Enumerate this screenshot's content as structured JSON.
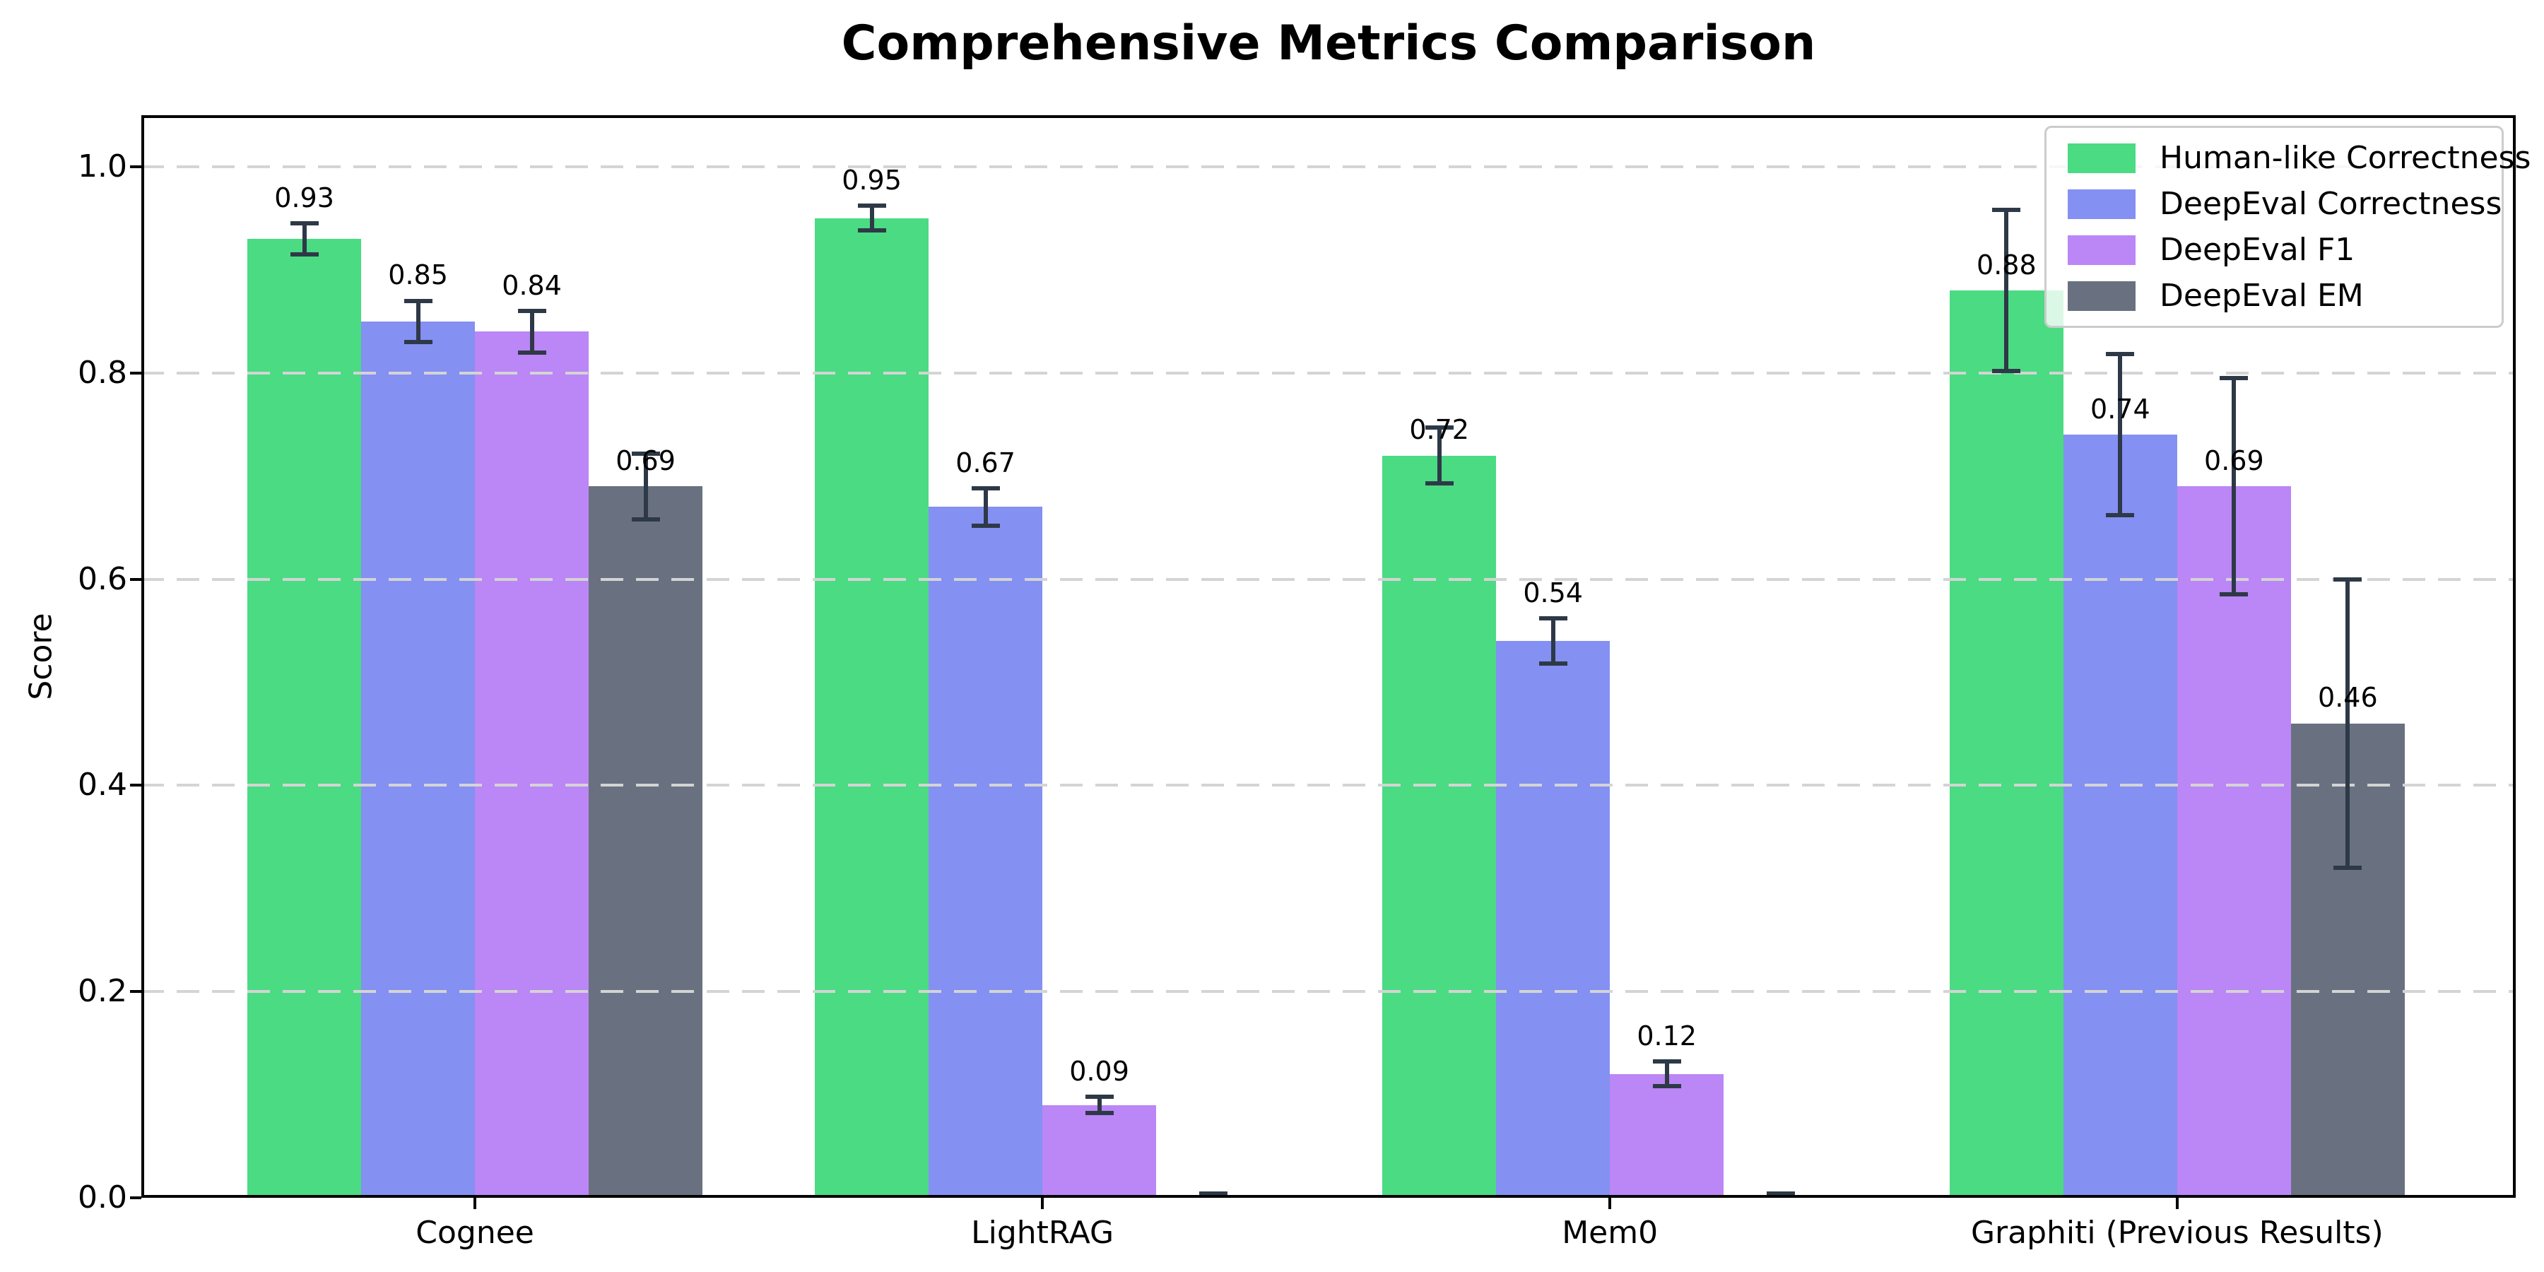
{
  "chart_data": {
    "type": "bar",
    "title": "Comprehensive Metrics Comparison",
    "xlabel": "",
    "ylabel": "Score",
    "categories": [
      "Cognee",
      "LightRAG",
      "Mem0",
      "Graphiti (Previous Results)"
    ],
    "series": [
      {
        "name": "Human-like Correctness",
        "color": "#4bdb83",
        "values": [
          0.93,
          0.95,
          0.72,
          0.88
        ],
        "errors": [
          0.015,
          0.012,
          0.027,
          0.078
        ],
        "labels": [
          "0.93",
          "0.95",
          "0.72",
          "0.88"
        ]
      },
      {
        "name": "DeepEval Correctness",
        "color": "#8490f2",
        "values": [
          0.85,
          0.67,
          0.54,
          0.74
        ],
        "errors": [
          0.02,
          0.018,
          0.022,
          0.078
        ],
        "labels": [
          "0.85",
          "0.67",
          "0.54",
          "0.74"
        ]
      },
      {
        "name": "DeepEval F1",
        "color": "#bb86f5",
        "values": [
          0.84,
          0.09,
          0.12,
          0.69
        ],
        "errors": [
          0.02,
          0.008,
          0.012,
          0.105
        ],
        "labels": [
          "0.84",
          "0.09",
          "0.12",
          "0.69"
        ]
      },
      {
        "name": "DeepEval EM",
        "color": "#697180",
        "values": [
          0.69,
          0.0,
          0.0,
          0.46
        ],
        "errors": [
          0.032,
          0.004,
          0.004,
          0.14
        ],
        "labels": [
          "0.69",
          "",
          "",
          "0.46"
        ]
      }
    ],
    "ytick_labels": [
      "0.0",
      "0.2",
      "0.4",
      "0.6",
      "0.8",
      "1.0"
    ],
    "yticks": [
      0.0,
      0.2,
      0.4,
      0.6,
      0.8,
      1.0
    ],
    "ylim": [
      0,
      1.05
    ],
    "grid": "horizontal-dashed",
    "legend_position": "upper-right"
  },
  "colors": {
    "errorbar": "#2e3947",
    "grid": "#d4d4d4",
    "axis": "#000000",
    "text": "#000000",
    "legend_border": "#cccccc",
    "legend_bg": "rgba(255,255,255,0.8)",
    "background": "#ffffff"
  }
}
